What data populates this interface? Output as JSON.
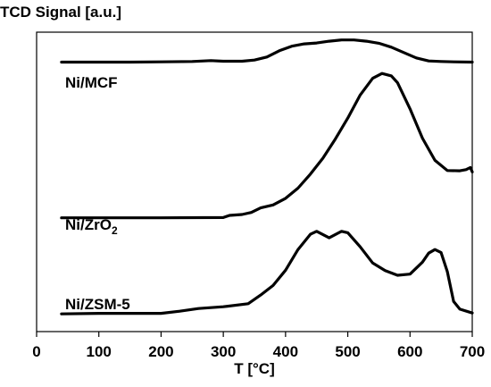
{
  "chart_data": {
    "type": "line",
    "ylabel": "TCD Signal [a.u.]",
    "xlabel": "T [°C]",
    "xlim": [
      0,
      700
    ],
    "xticks": [
      0,
      100,
      200,
      300,
      400,
      500,
      600,
      700
    ],
    "ytick_labels": false,
    "grid": false,
    "legend": "none",
    "line_color": "#000000",
    "series": [
      {
        "name": "Ni/MCF",
        "label_sub": "",
        "x": [
          40,
          100,
          150,
          200,
          250,
          280,
          300,
          330,
          350,
          370,
          390,
          410,
          430,
          450,
          470,
          490,
          510,
          530,
          550,
          570,
          590,
          610,
          630,
          650,
          670,
          700
        ],
        "y": [
          0.9,
          0.9,
          0.9,
          0.901,
          0.902,
          0.905,
          0.903,
          0.903,
          0.907,
          0.917,
          0.938,
          0.953,
          0.961,
          0.964,
          0.97,
          0.974,
          0.974,
          0.97,
          0.963,
          0.95,
          0.932,
          0.914,
          0.904,
          0.902,
          0.901,
          0.9
        ]
      },
      {
        "name": "Ni/ZrO",
        "label_sub": "2",
        "x": [
          40,
          100,
          200,
          300,
          310,
          330,
          345,
          360,
          380,
          400,
          420,
          440,
          460,
          480,
          500,
          520,
          540,
          555,
          570,
          580,
          600,
          620,
          640,
          660,
          680,
          690,
          697,
          700
        ],
        "y": [
          0.38,
          0.38,
          0.38,
          0.381,
          0.388,
          0.391,
          0.398,
          0.413,
          0.423,
          0.445,
          0.479,
          0.526,
          0.579,
          0.643,
          0.713,
          0.79,
          0.846,
          0.862,
          0.854,
          0.831,
          0.744,
          0.646,
          0.572,
          0.538,
          0.537,
          0.541,
          0.548,
          0.533
        ]
      },
      {
        "name": "Ni/ZSM-5",
        "label_sub": "",
        "x": [
          40,
          100,
          150,
          200,
          230,
          260,
          300,
          340,
          360,
          380,
          400,
          420,
          440,
          450,
          470,
          490,
          500,
          520,
          540,
          560,
          580,
          600,
          620,
          630,
          640,
          650,
          660,
          670,
          680,
          700
        ],
        "y": [
          0.059,
          0.061,
          0.061,
          0.061,
          0.068,
          0.077,
          0.083,
          0.093,
          0.122,
          0.154,
          0.205,
          0.274,
          0.325,
          0.335,
          0.313,
          0.335,
          0.33,
          0.283,
          0.229,
          0.204,
          0.188,
          0.192,
          0.232,
          0.262,
          0.274,
          0.264,
          0.2,
          0.101,
          0.075,
          0.062
        ]
      }
    ]
  }
}
